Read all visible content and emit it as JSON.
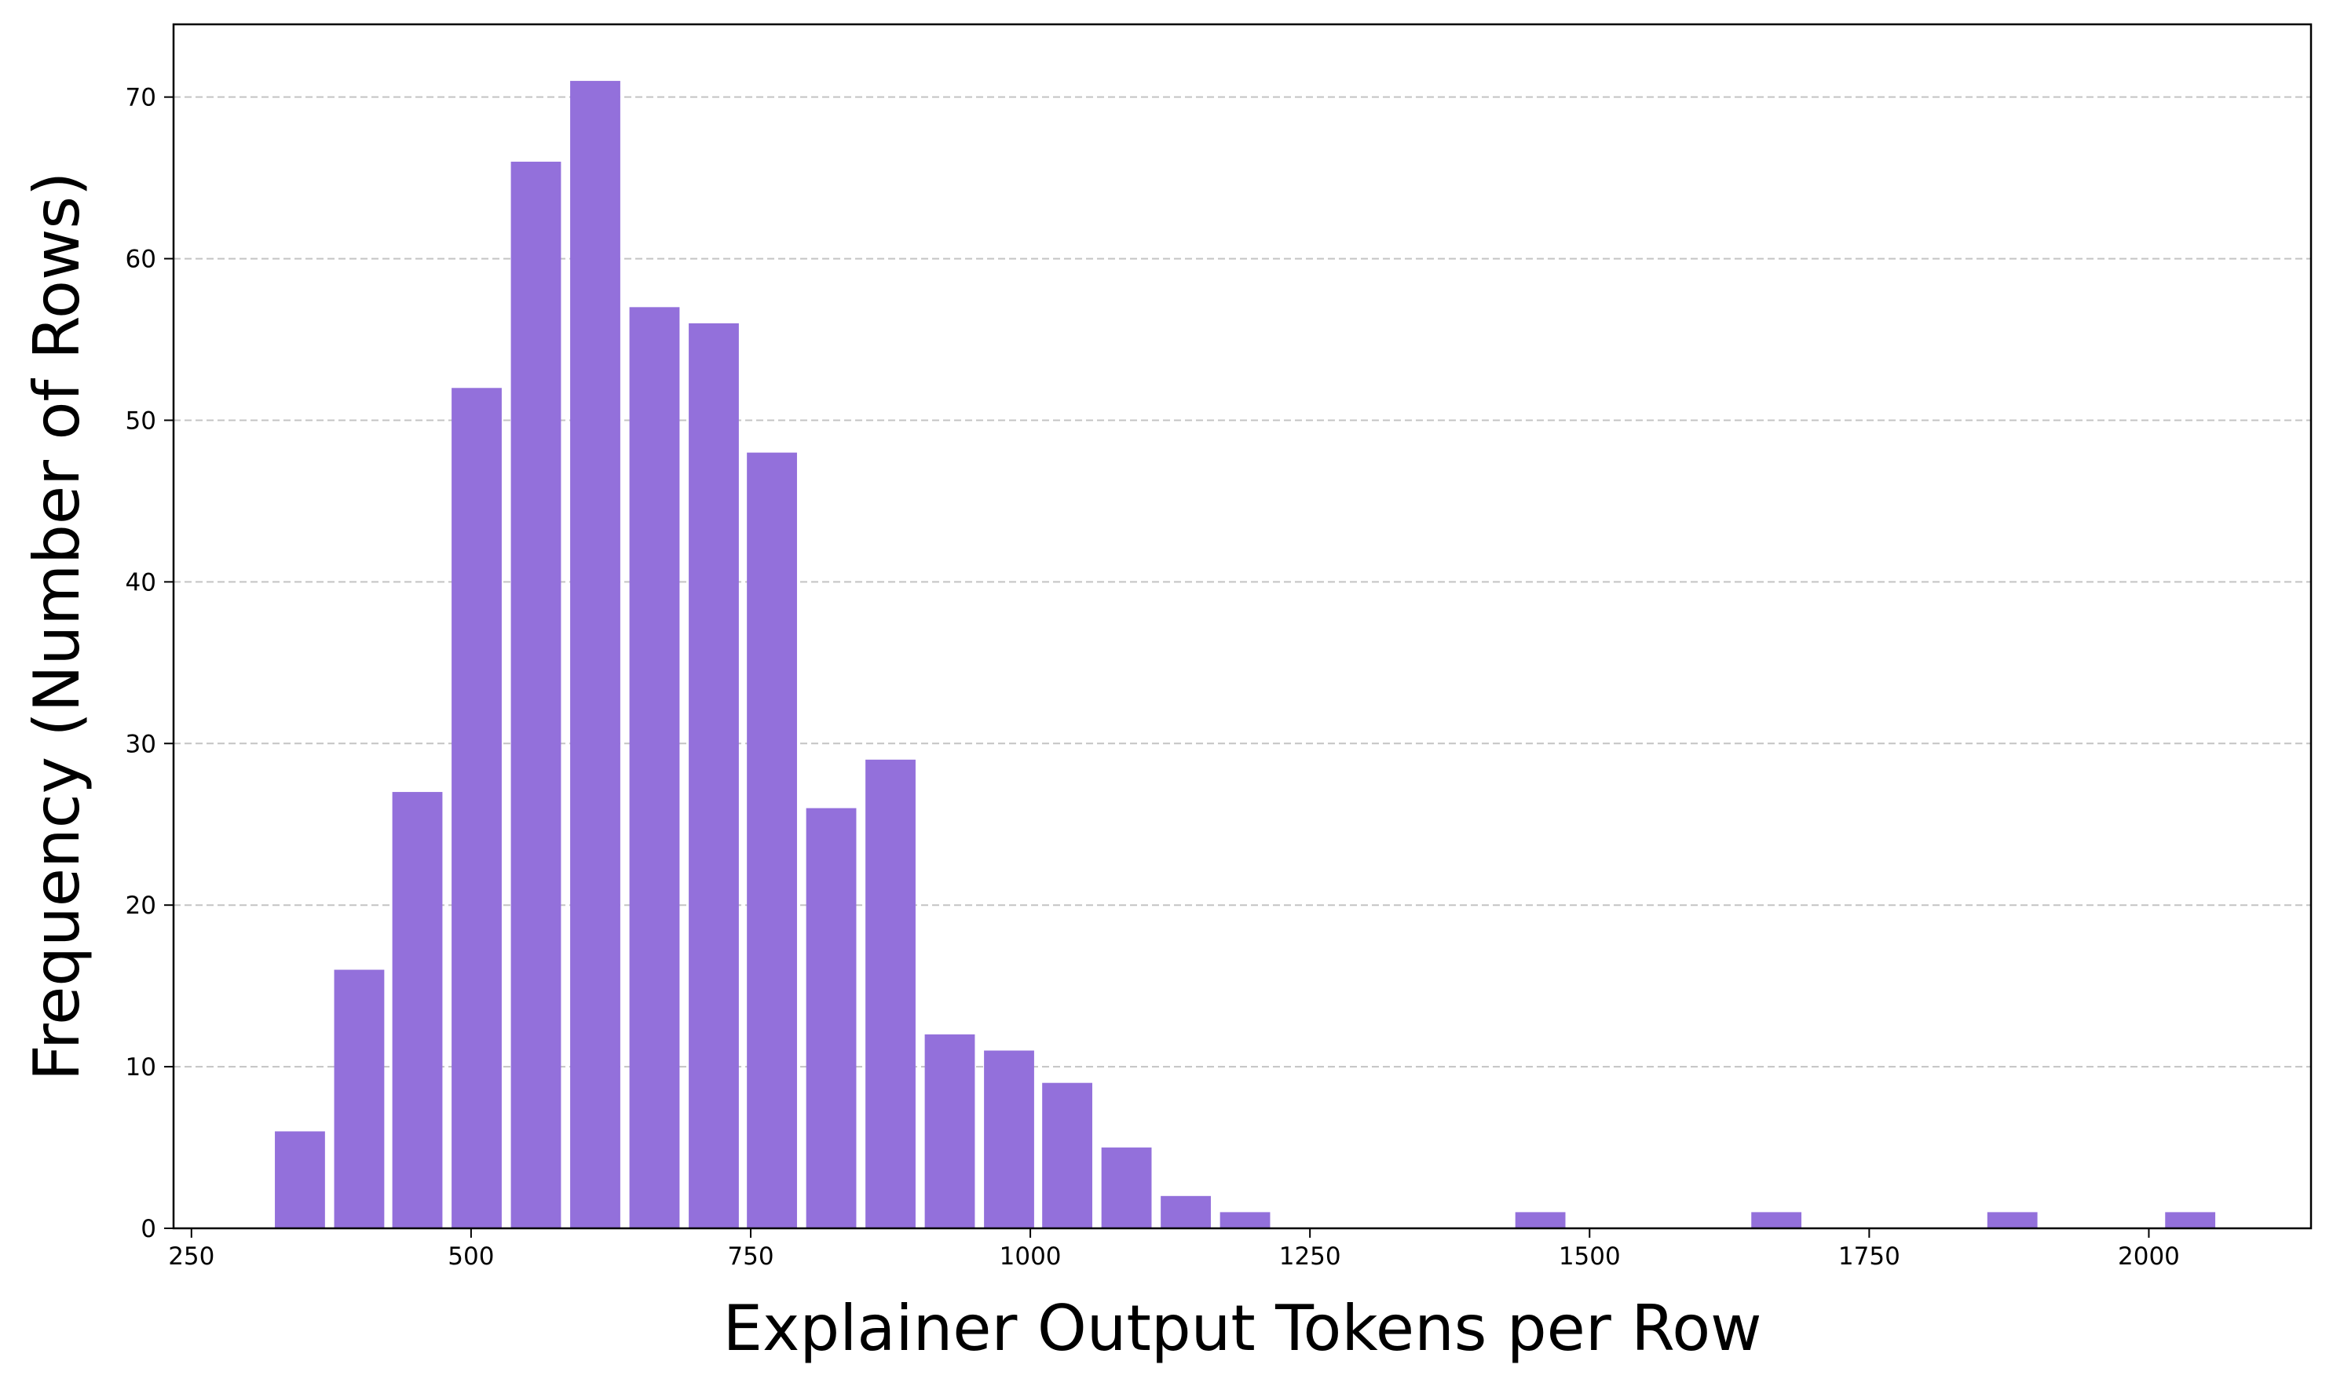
{
  "chart_data": {
    "type": "bar",
    "title": "",
    "xlabel": "Explainer Output Tokens per Row",
    "ylabel": "Frequency (Number of Rows)",
    "xlim": [
      234,
      2145
    ],
    "ylim": [
      0,
      74.5
    ],
    "xticks": [
      250,
      500,
      750,
      1000,
      1250,
      1500,
      1750,
      2000
    ],
    "yticks": [
      0,
      10,
      20,
      30,
      40,
      50,
      60,
      70
    ],
    "bin_width": 52.7,
    "bar_width": 44.8,
    "grid": "y",
    "bar_color": "#9370db",
    "bins": [
      {
        "x": 347,
        "value": 6
      },
      {
        "x": 400,
        "value": 16
      },
      {
        "x": 452,
        "value": 27
      },
      {
        "x": 505,
        "value": 52
      },
      {
        "x": 558,
        "value": 66
      },
      {
        "x": 611,
        "value": 71
      },
      {
        "x": 664,
        "value": 57
      },
      {
        "x": 717,
        "value": 56
      },
      {
        "x": 769,
        "value": 48
      },
      {
        "x": 822,
        "value": 26
      },
      {
        "x": 875,
        "value": 29
      },
      {
        "x": 928,
        "value": 12
      },
      {
        "x": 981,
        "value": 11
      },
      {
        "x": 1033,
        "value": 9
      },
      {
        "x": 1086,
        "value": 5
      },
      {
        "x": 1139,
        "value": 2
      },
      {
        "x": 1192,
        "value": 1
      },
      {
        "x": 1456,
        "value": 1
      },
      {
        "x": 1667,
        "value": 1
      },
      {
        "x": 1878,
        "value": 1
      },
      {
        "x": 2037,
        "value": 1
      }
    ]
  }
}
